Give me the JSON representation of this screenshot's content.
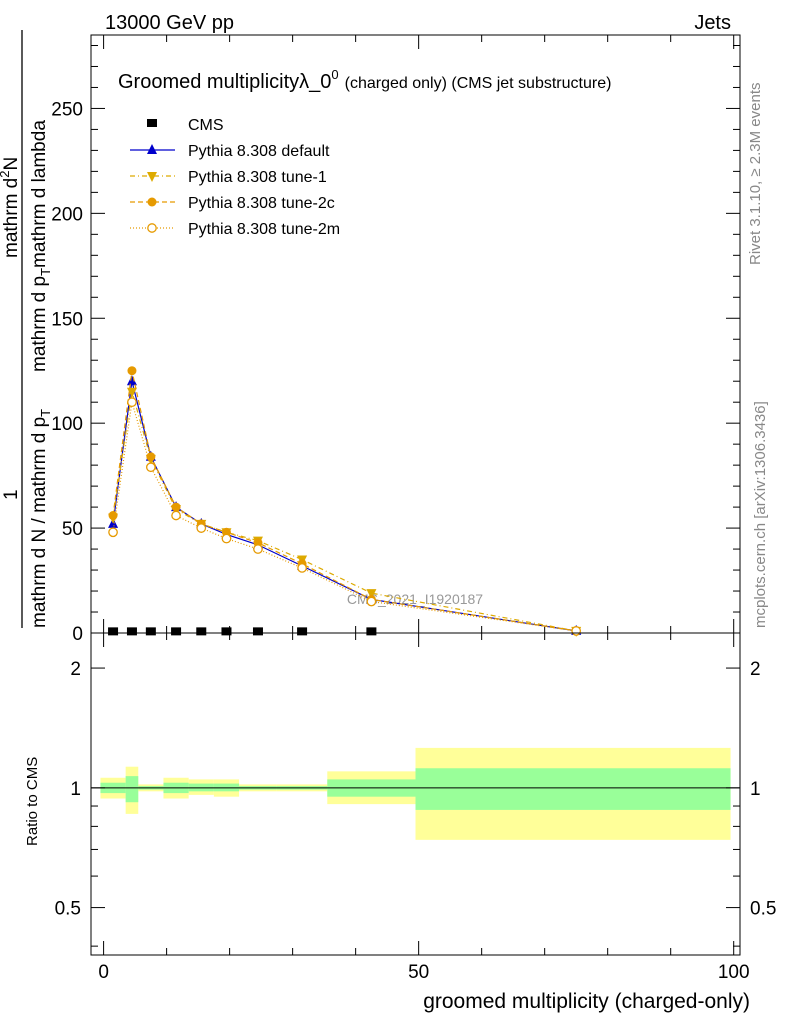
{
  "header": {
    "left": "13000 GeV pp",
    "right": "Jets"
  },
  "side_text": {
    "rivet": "Rivet 3.1.10, ≥ 2.3M events",
    "mcplots": "mcplots.cern.ch [arXiv:1306.3436]"
  },
  "chart_data": [
    {
      "type": "line",
      "title_main": "Groomed multiplicityλ_0",
      "title_sup": "0",
      "title_rest": "(charged only) (CMS jet substructure)",
      "ylabel_numerator_1": "1",
      "ylabel_denominator": "mathrm d N / mathrm d p",
      "ylabel_denominator_sub": "T",
      "ylabel_denominator_2": "mathrm d N / mathrm d p",
      "ylabel_main": "mathrm d",
      "ylabel_main_sup": "2",
      "ylabel_main_rest": "N",
      "ylabel_under": "mathrm d p",
      "ylabel_under_sub": "T",
      "ylabel_under_rest": "mathrm d lambda",
      "ylim": [
        0,
        285
      ],
      "xlim": [
        -2,
        101
      ],
      "y_ticks": [
        "0",
        "50",
        "100",
        "150",
        "200",
        "250"
      ],
      "y_tick_values": [
        0,
        50,
        100,
        150,
        200,
        250
      ],
      "watermark": "CMS_2021_I1920187",
      "legend_position": "top-left",
      "series": [
        {
          "name": "CMS",
          "color": "#000000",
          "marker": "square",
          "x": [
            1.5,
            4.5,
            7.5,
            11.5,
            15.5,
            19.5,
            24.5,
            31.5,
            42.5,
            75
          ],
          "y": [
            0.3,
            0.3,
            0.3,
            0.3,
            0.3,
            0.3,
            0.3,
            0.3,
            0.3,
            0.3
          ]
        },
        {
          "name": "Pythia 8.308 default",
          "color": "#0000cc",
          "marker": "triangle-up",
          "dash": "",
          "x": [
            1.5,
            4.5,
            7.5,
            11.5,
            15.5,
            19.5,
            24.5,
            31.5,
            42.5,
            75
          ],
          "y": [
            52,
            120,
            84,
            60,
            52,
            47,
            42,
            32,
            16,
            1
          ]
        },
        {
          "name": "Pythia 8.308 tune-1",
          "color": "#ddaa00",
          "marker": "triangle-down",
          "dash": "5,3,1,3",
          "x": [
            1.5,
            4.5,
            7.5,
            11.5,
            15.5,
            19.5,
            24.5,
            31.5,
            42.5,
            75
          ],
          "y": [
            55,
            115,
            83,
            59,
            52,
            48,
            44,
            35,
            19,
            1
          ]
        },
        {
          "name": "Pythia 8.308 tune-2c",
          "color": "#e69a00",
          "marker": "circle-filled",
          "dash": "5,3",
          "x": [
            1.5,
            4.5,
            7.5,
            11.5,
            15.5,
            19.5,
            24.5,
            31.5,
            42.5,
            75
          ],
          "y": [
            56,
            125,
            84,
            60,
            52,
            48,
            43,
            33,
            16,
            1
          ]
        },
        {
          "name": "Pythia 8.308 tune-2m",
          "color": "#e69a00",
          "marker": "circle-open",
          "dash": "1,2",
          "x": [
            1.5,
            4.5,
            7.5,
            11.5,
            15.5,
            19.5,
            24.5,
            31.5,
            42.5,
            75
          ],
          "y": [
            48,
            110,
            79,
            56,
            50,
            45,
            40,
            31,
            15,
            1
          ]
        }
      ]
    },
    {
      "type": "area",
      "ylabel": "Ratio to CMS",
      "xlabel": "groomed multiplicity (charged-only)",
      "ylim": [
        0.38,
        2.45
      ],
      "xlim": [
        -2,
        101
      ],
      "y_ticks": [
        "0.5",
        "1",
        "2"
      ],
      "y_tick_values": [
        0.5,
        1,
        2
      ],
      "x_ticks": [
        "0",
        "50",
        "100"
      ],
      "x_tick_values": [
        0,
        50,
        100
      ],
      "bands": [
        {
          "x0": -0.5,
          "x1": 3.5,
          "green": [
            0.97,
            1.03
          ],
          "yellow": [
            0.94,
            1.06
          ]
        },
        {
          "x0": 3.5,
          "x1": 5.5,
          "green": [
            0.92,
            1.07
          ],
          "yellow": [
            0.86,
            1.13
          ]
        },
        {
          "x0": 5.5,
          "x1": 9.5,
          "green": [
            0.99,
            1.01
          ],
          "yellow": [
            0.98,
            1.02
          ]
        },
        {
          "x0": 9.5,
          "x1": 13.5,
          "green": [
            0.97,
            1.03
          ],
          "yellow": [
            0.94,
            1.06
          ]
        },
        {
          "x0": 13.5,
          "x1": 17.5,
          "green": [
            0.98,
            1.025
          ],
          "yellow": [
            0.96,
            1.05
          ]
        },
        {
          "x0": 17.5,
          "x1": 21.5,
          "green": [
            0.98,
            1.025
          ],
          "yellow": [
            0.95,
            1.05
          ]
        },
        {
          "x0": 21.5,
          "x1": 27.5,
          "green": [
            0.99,
            1.01
          ],
          "yellow": [
            0.98,
            1.02
          ]
        },
        {
          "x0": 27.5,
          "x1": 35.5,
          "green": [
            0.99,
            1.01
          ],
          "yellow": [
            0.98,
            1.02
          ]
        },
        {
          "x0": 35.5,
          "x1": 49.5,
          "green": [
            0.95,
            1.05
          ],
          "yellow": [
            0.91,
            1.1
          ]
        },
        {
          "x0": 49.5,
          "x1": 99.5,
          "green": [
            0.88,
            1.12
          ],
          "yellow": [
            0.74,
            1.26
          ]
        }
      ]
    }
  ]
}
